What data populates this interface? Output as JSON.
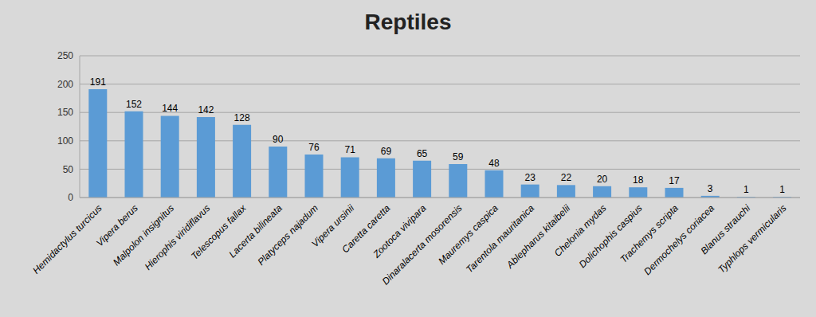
{
  "chart_data": {
    "type": "bar",
    "title": "Reptiles",
    "categories": [
      "Hemidactylus turcicus",
      "Vipera berus",
      "Malpolon insignitus",
      "Hierophis viridiflavus",
      "Telescopus fallax",
      "Lacerta bilineata",
      "Platyceps najadum",
      "Vipera ursinii",
      "Caretta caretta",
      "Zootoca vivipara",
      "Dinaralacerta mosorensis",
      "Mauremys caspica",
      "Tarentola mauritanica",
      "Ablepharus kitaibelii",
      "Chelonia mydas",
      "Dolichophis caspius",
      "Trachemys scripta",
      "Dermochelys coriacea",
      "Blanus strauchi",
      "Typhlops vermicularis"
    ],
    "values": [
      191,
      152,
      144,
      142,
      128,
      90,
      76,
      71,
      69,
      65,
      59,
      48,
      23,
      22,
      20,
      18,
      17,
      3,
      1,
      1
    ],
    "color": "#5b9bd5",
    "ylim": [
      0,
      250
    ],
    "yticks": [
      0,
      50,
      100,
      150,
      200,
      250
    ],
    "grid": true,
    "data_labels": true
  }
}
